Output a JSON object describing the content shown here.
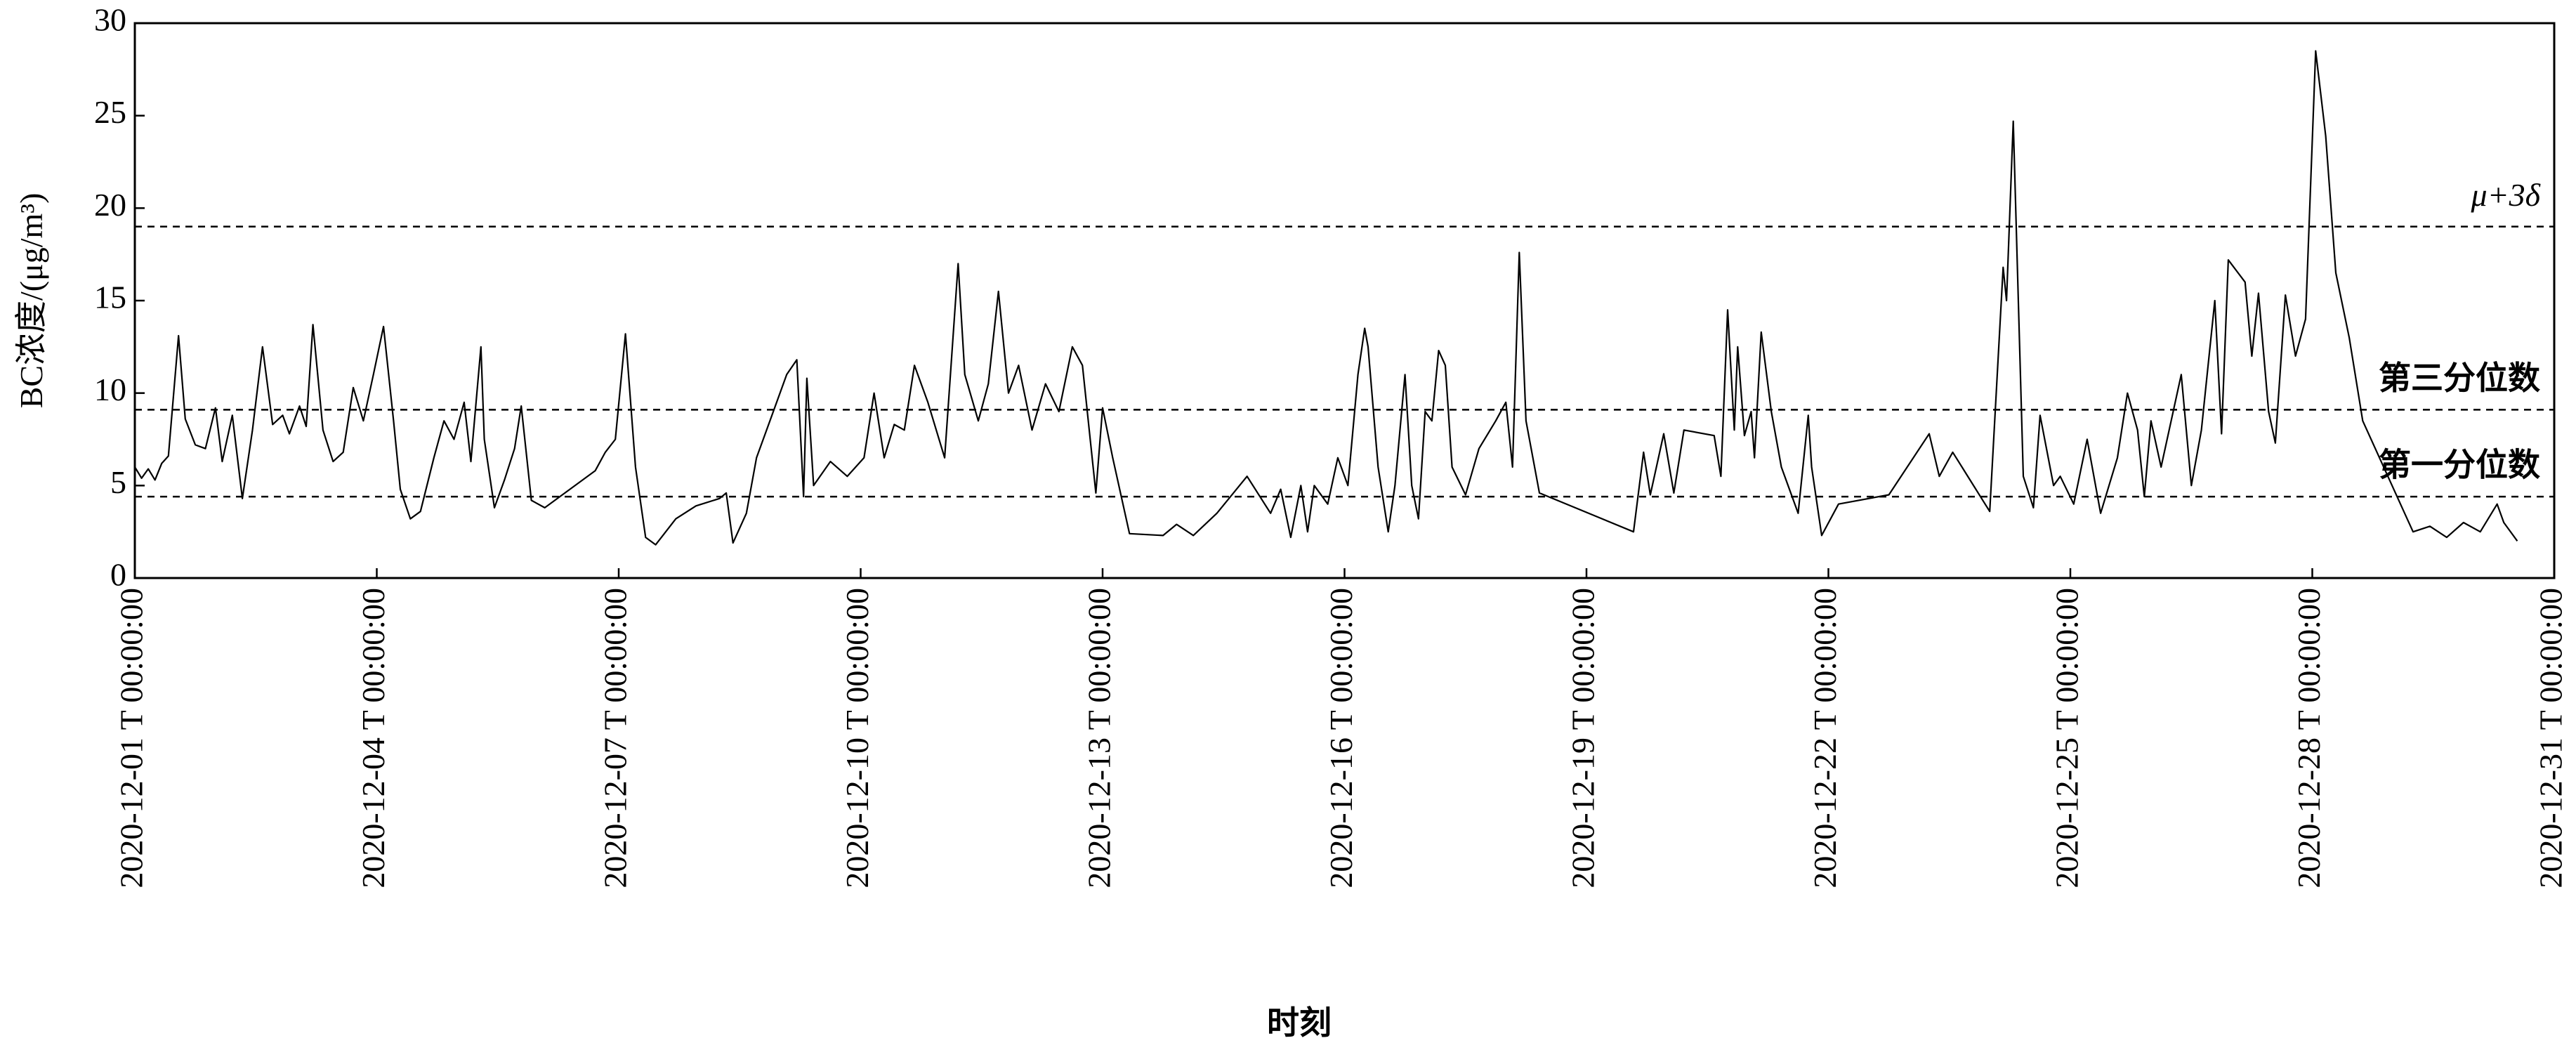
{
  "chart_data": {
    "type": "line",
    "xlabel": "时刻",
    "ylabel": "BC浓度/(μg/m³)",
    "xlim": [
      "2020-12-01 T 00:00:00",
      "2020-12-31 T 00:00:00"
    ],
    "xticks": [
      "2020-12-01 T 00:00:00",
      "2020-12-04 T 00:00:00",
      "2020-12-07 T 00:00:00",
      "2020-12-10 T 00:00:00",
      "2020-12-13 T 00:00:00",
      "2020-12-16 T 00:00:00",
      "2020-12-19 T 00:00:00",
      "2020-12-22 T 00:00:00",
      "2020-12-25 T 00:00:00",
      "2020-12-28 T 00:00:00",
      "2020-12-31 T 00:00:00"
    ],
    "ylim": [
      0,
      30
    ],
    "yticks": [
      0,
      5,
      10,
      15,
      20,
      25,
      30
    ],
    "reference_lines": [
      {
        "label": "μ+3δ",
        "value": 19.0
      },
      {
        "label": "第三分位数",
        "value": 9.1
      },
      {
        "label": "第一分位数",
        "value": 4.4
      }
    ],
    "x": [
      "2020-12-01 T 00:00:00",
      "2020-12-01 T 02:00:00",
      "2020-12-01 T 04:00:00",
      "2020-12-01 T 06:00:00",
      "2020-12-01 T 08:00:00",
      "2020-12-01 T 10:00:00",
      "2020-12-01 T 13:00:00",
      "2020-12-01 T 15:00:00",
      "2020-12-01 T 18:00:00",
      "2020-12-01 T 21:00:00",
      "2020-12-02 T 00:00:00",
      "2020-12-02 T 02:00:00",
      "2020-12-02 T 05:00:00",
      "2020-12-02 T 08:00:00",
      "2020-12-02 T 11:00:00",
      "2020-12-02 T 14:00:00",
      "2020-12-02 T 17:00:00",
      "2020-12-02 T 20:00:00",
      "2020-12-02 T 22:00:00",
      "2020-12-03 T 01:00:00",
      "2020-12-03 T 03:00:00",
      "2020-12-03 T 05:00:00",
      "2020-12-03 T 08:00:00",
      "2020-12-03 T 11:00:00",
      "2020-12-03 T 14:00:00",
      "2020-12-03 T 17:00:00",
      "2020-12-03 T 20:00:00",
      "2020-12-03 T 23:00:00",
      "2020-12-04 T 02:00:00",
      "2020-12-04 T 05:00:00",
      "2020-12-04 T 07:00:00",
      "2020-12-04 T 10:00:00",
      "2020-12-04 T 13:00:00",
      "2020-12-04 T 17:00:00",
      "2020-12-04 T 20:00:00",
      "2020-12-04 T 23:00:00",
      "2020-12-05 T 02:00:00",
      "2020-12-05 T 04:00:00",
      "2020-12-05 T 07:00:00",
      "2020-12-05 T 08:00:00",
      "2020-12-05 T 11:00:00",
      "2020-12-05 T 14:00:00",
      "2020-12-05 T 17:00:00",
      "2020-12-05 T 19:00:00",
      "2020-12-05 T 22:00:00",
      "2020-12-06 T 02:00:00",
      "2020-12-06 T 17:00:00",
      "2020-12-06 T 20:00:00",
      "2020-12-06 T 23:00:00",
      "2020-12-07 T 02:00:00",
      "2020-12-07 T 05:00:00",
      "2020-12-07 T 08:00:00",
      "2020-12-07 T 11:00:00",
      "2020-12-07 T 17:00:00",
      "2020-12-07 T 23:00:00",
      "2020-12-08 T 06:00:00",
      "2020-12-08 T 08:00:00",
      "2020-12-08 T 10:00:00",
      "2020-12-08 T 14:00:00",
      "2020-12-08 T 17:00:00",
      "2020-12-08 T 21:00:00",
      "2020-12-09 T 02:00:00",
      "2020-12-09 T 05:00:00",
      "2020-12-09 T 07:00:00",
      "2020-12-09 T 08:00:00",
      "2020-12-09 T 10:00:00",
      "2020-12-09 T 15:00:00",
      "2020-12-09 T 20:00:00",
      "2020-12-10 T 01:00:00",
      "2020-12-10 T 04:00:00",
      "2020-12-10 T 07:00:00",
      "2020-12-10 T 10:00:00",
      "2020-12-10 T 13:00:00",
      "2020-12-10 T 16:00:00",
      "2020-12-10 T 20:00:00",
      "2020-12-11 T 01:00:00",
      "2020-12-11 T 05:00:00",
      "2020-12-11 T 07:00:00",
      "2020-12-11 T 11:00:00",
      "2020-12-11 T 14:00:00",
      "2020-12-11 T 17:00:00",
      "2020-12-11 T 20:00:00",
      "2020-12-11 T 23:00:00",
      "2020-12-12 T 03:00:00",
      "2020-12-12 T 07:00:00",
      "2020-12-12 T 11:00:00",
      "2020-12-12 T 15:00:00",
      "2020-12-12 T 18:00:00",
      "2020-12-12 T 22:00:00",
      "2020-12-13 T 00:00:00",
      "2020-12-13 T 03:00:00",
      "2020-12-13 T 08:00:00",
      "2020-12-13 T 18:00:00",
      "2020-12-13 T 22:00:00",
      "2020-12-14 T 03:00:00",
      "2020-12-14 T 10:00:00",
      "2020-12-14 T 19:00:00",
      "2020-12-15 T 02:00:00",
      "2020-12-15 T 05:00:00",
      "2020-12-15 T 08:00:00",
      "2020-12-15 T 11:00:00",
      "2020-12-15 T 13:00:00",
      "2020-12-15 T 15:00:00",
      "2020-12-15 T 19:00:00",
      "2020-12-15 T 22:00:00",
      "2020-12-16 T 01:00:00",
      "2020-12-16 T 04:00:00",
      "2020-12-16 T 06:00:00",
      "2020-12-16 T 07:00:00",
      "2020-12-16 T 10:00:00",
      "2020-12-16 T 13:00:00",
      "2020-12-16 T 15:00:00",
      "2020-12-16 T 18:00:00",
      "2020-12-16 T 20:00:00",
      "2020-12-16 T 22:00:00",
      "2020-12-17 T 00:00:00",
      "2020-12-17 T 02:00:00",
      "2020-12-17 T 04:00:00",
      "2020-12-17 T 06:00:00",
      "2020-12-17 T 08:00:00",
      "2020-12-17 T 12:00:00",
      "2020-12-17 T 16:00:00",
      "2020-12-17 T 21:00:00",
      "2020-12-18 T 00:00:00",
      "2020-12-18 T 02:00:00",
      "2020-12-18 T 04:00:00",
      "2020-12-18 T 06:00:00",
      "2020-12-18 T 10:00:00",
      "2020-12-19 T 14:00:00",
      "2020-12-19 T 17:00:00",
      "2020-12-19 T 19:00:00",
      "2020-12-19 T 23:00:00",
      "2020-12-20 T 02:00:00",
      "2020-12-20 T 05:00:00",
      "2020-12-20 T 14:00:00",
      "2020-12-20 T 16:00:00",
      "2020-12-20 T 18:00:00",
      "2020-12-20 T 20:00:00",
      "2020-12-20 T 21:00:00",
      "2020-12-20 T 23:00:00",
      "2020-12-21 T 01:00:00",
      "2020-12-21 T 02:00:00",
      "2020-12-21 T 04:00:00",
      "2020-12-21 T 07:00:00",
      "2020-12-21 T 10:00:00",
      "2020-12-21 T 15:00:00",
      "2020-12-21 T 18:00:00",
      "2020-12-21 T 19:00:00",
      "2020-12-21 T 22:00:00",
      "2020-12-22 T 03:00:00",
      "2020-12-22 T 18:00:00",
      "2020-12-23 T 06:00:00",
      "2020-12-23 T 09:00:00",
      "2020-12-23 T 13:00:00",
      "2020-12-24 T 00:00:00",
      "2020-12-24 T 04:00:00",
      "2020-12-24 T 05:00:00",
      "2020-12-24 T 07:00:00",
      "2020-12-24 T 10:00:00",
      "2020-12-24 T 13:00:00",
      "2020-12-24 T 15:00:00",
      "2020-12-24 T 19:00:00",
      "2020-12-24 T 21:00:00",
      "2020-12-25 T 01:00:00",
      "2020-12-25 T 05:00:00",
      "2020-12-25 T 09:00:00",
      "2020-12-25 T 14:00:00",
      "2020-12-25 T 17:00:00",
      "2020-12-25 T 20:00:00",
      "2020-12-25 T 22:00:00",
      "2020-12-26 T 00:00:00",
      "2020-12-26 T 03:00:00",
      "2020-12-26 T 09:00:00",
      "2020-12-26 T 12:00:00",
      "2020-12-26 T 15:00:00",
      "2020-12-26 T 19:00:00",
      "2020-12-26 T 21:00:00",
      "2020-12-26 T 23:00:00",
      "2020-12-27 T 04:00:00",
      "2020-12-27 T 06:00:00",
      "2020-12-27 T 08:00:00",
      "2020-12-27 T 11:00:00",
      "2020-12-27 T 13:00:00",
      "2020-12-27 T 16:00:00",
      "2020-12-27 T 19:00:00",
      "2020-12-27 T 22:00:00",
      "2020-12-28 T 01:00:00",
      "2020-12-28 T 04:00:00",
      "2020-12-28 T 07:00:00",
      "2020-12-28 T 11:00:00",
      "2020-12-28 T 15:00:00",
      "2020-12-29 T 06:00:00",
      "2020-12-29 T 11:00:00",
      "2020-12-29 T 16:00:00",
      "2020-12-29 T 21:00:00",
      "2020-12-30 T 02:00:00",
      "2020-12-30 T 07:00:00",
      "2020-12-30 T 09:00:00",
      "2020-12-30 T 13:00:00"
    ],
    "series": [
      {
        "color": "#000000",
        "values": [
          6.0,
          5.4,
          5.9,
          5.3,
          6.2,
          6.6,
          13.1,
          8.6,
          7.2,
          7.0,
          9.2,
          6.3,
          8.8,
          4.3,
          8.0,
          12.5,
          8.3,
          8.8,
          7.8,
          9.3,
          8.2,
          13.7,
          8.0,
          6.3,
          6.8,
          10.3,
          8.5,
          11.0,
          13.6,
          8.5,
          4.8,
          3.2,
          3.6,
          6.5,
          8.5,
          7.5,
          9.5,
          6.3,
          12.5,
          7.5,
          3.8,
          5.3,
          7.0,
          9.3,
          4.2,
          3.8,
          5.8,
          6.8,
          7.5,
          13.2,
          6.0,
          2.2,
          1.8,
          3.2,
          3.9,
          4.3,
          4.6,
          1.9,
          3.5,
          6.5,
          8.5,
          11.0,
          11.8,
          4.4,
          10.8,
          5.0,
          6.3,
          5.5,
          6.5,
          10.0,
          6.5,
          8.3,
          8.0,
          11.5,
          9.5,
          6.5,
          17.0,
          11.0,
          8.5,
          10.5,
          15.5,
          10.0,
          11.5,
          8.0,
          10.5,
          9.0,
          12.5,
          11.5,
          4.6,
          9.2,
          6.5,
          2.4,
          2.3,
          2.9,
          2.3,
          3.5,
          5.5,
          3.5,
          4.8,
          2.2,
          5.0,
          2.5,
          5.0,
          4.0,
          6.5,
          5.0,
          11.0,
          13.5,
          12.5,
          6.0,
          2.5,
          5.0,
          11.0,
          5.0,
          3.2,
          9.0,
          8.5,
          12.3,
          11.5,
          6.0,
          4.5,
          7.0,
          8.5,
          9.5,
          6.0,
          17.6,
          8.5,
          4.6,
          2.5,
          6.8,
          4.5,
          7.8,
          4.6,
          8.0,
          7.7,
          5.5,
          14.5,
          8.0,
          12.5,
          7.7,
          9.0,
          6.5,
          13.3,
          9.0,
          6.0,
          3.5,
          8.8,
          6.0,
          2.3,
          4.0,
          4.5,
          7.8,
          5.5,
          6.8,
          3.6,
          16.8,
          15.0,
          24.7,
          5.5,
          3.8,
          8.8,
          5.0,
          5.5,
          4.0,
          7.5,
          3.5,
          6.5,
          10.0,
          8.0,
          4.4,
          8.5,
          6.0,
          11.0,
          5.0,
          8.0,
          15.0,
          7.8,
          17.2,
          16.0,
          12.0,
          15.4,
          9.0,
          7.3,
          15.3,
          12.0,
          14.0,
          28.5,
          23.9,
          16.5,
          13.0,
          8.5,
          2.5,
          2.8,
          2.2,
          3.0,
          2.5,
          4.0,
          3.0,
          2.0
        ]
      }
    ]
  }
}
